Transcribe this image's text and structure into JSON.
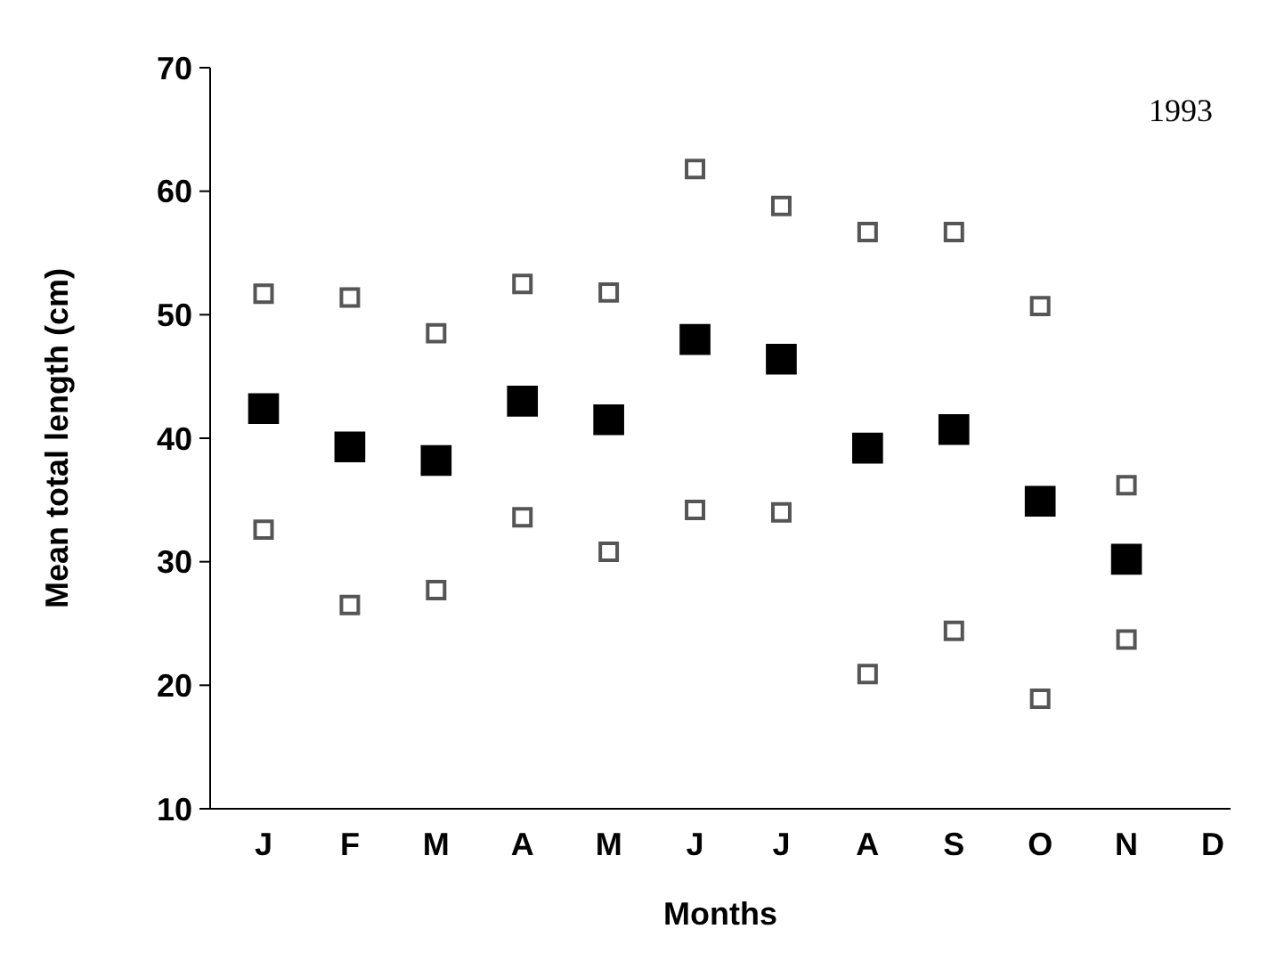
{
  "chart_data": {
    "type": "scatter",
    "xlabel": "Months",
    "ylabel": "Mean total length (cm)",
    "annotations": [
      "1993"
    ],
    "categories": [
      "J",
      "F",
      "M",
      "A",
      "M",
      "J",
      "J",
      "A",
      "S",
      "O",
      "N",
      "D"
    ],
    "ylim": [
      10,
      70
    ],
    "yticks": [
      10,
      20,
      30,
      40,
      50,
      60,
      70
    ],
    "marker": "square",
    "series": [
      {
        "color": "#000000",
        "values": [
          42.4,
          39.3,
          38.2,
          43.0,
          41.5,
          48.0,
          46.4,
          39.2,
          40.7,
          34.9,
          30.2,
          null
        ]
      },
      {
        "color": "#555555",
        "values": [
          51.7,
          51.4,
          48.5,
          52.5,
          51.8,
          61.8,
          58.8,
          56.7,
          56.7,
          50.7,
          36.2,
          null
        ]
      },
      {
        "color": "#555555",
        "values": [
          32.6,
          26.5,
          27.7,
          33.6,
          30.8,
          34.2,
          34.0,
          20.9,
          24.4,
          18.9,
          23.7,
          null
        ]
      }
    ]
  }
}
